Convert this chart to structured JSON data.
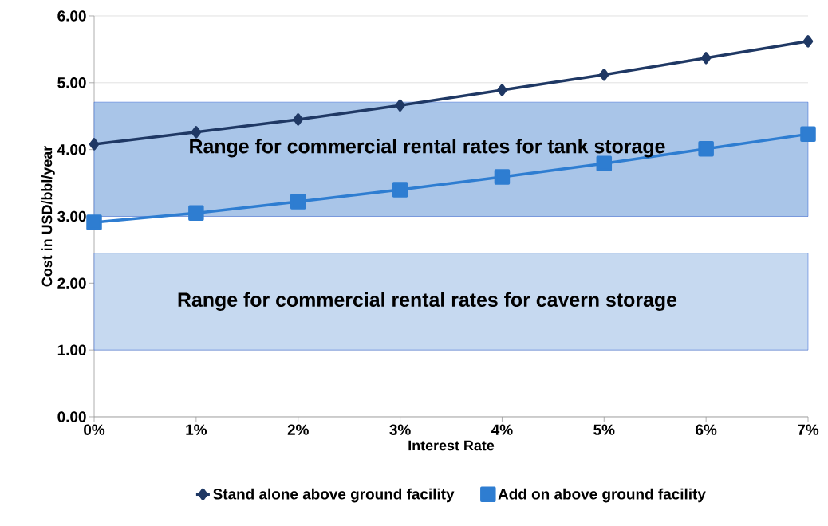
{
  "chart_data": {
    "type": "line",
    "xlabel": "Interest Rate",
    "ylabel": "Cost in USD/bbl/year",
    "categories": [
      "0%",
      "1%",
      "2%",
      "3%",
      "4%",
      "5%",
      "6%",
      "7%"
    ],
    "series": [
      {
        "name": "Stand alone above ground facility",
        "color": "#1f3864",
        "marker": "diamond",
        "values": [
          4.08,
          4.26,
          4.45,
          4.66,
          4.89,
          5.12,
          5.37,
          5.62
        ]
      },
      {
        "name": "Add on above ground facility",
        "color": "#2e7dd1",
        "marker": "square",
        "values": [
          2.91,
          3.05,
          3.22,
          3.4,
          3.59,
          3.79,
          4.01,
          4.23
        ]
      }
    ],
    "ylim": [
      0,
      6
    ],
    "yticks": [
      {
        "value": 0,
        "label": "0.00"
      },
      {
        "value": 1,
        "label": "1.00"
      },
      {
        "value": 2,
        "label": "2.00"
      },
      {
        "value": 3,
        "label": "3.00"
      },
      {
        "value": 4,
        "label": "4.00"
      },
      {
        "value": 5,
        "label": "5.00"
      },
      {
        "value": 6,
        "label": "6.00"
      }
    ],
    "bands": [
      {
        "axis": "y",
        "from": 3.0,
        "to": 4.71,
        "label": "Range for commercial rental rates for tank storage",
        "color": "#a9c5e8"
      },
      {
        "axis": "y",
        "from": 1.0,
        "to": 2.45,
        "label": "Range for commercial rental rates for cavern storage",
        "color": "#c6d9f0"
      }
    ],
    "grid": "y",
    "legend": "bottom",
    "line_style": "solid"
  }
}
